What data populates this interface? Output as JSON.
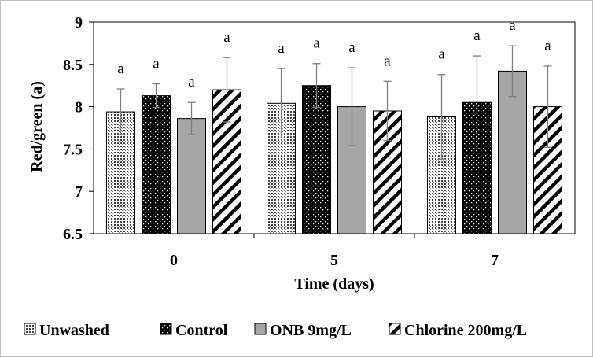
{
  "chart_data": {
    "type": "bar",
    "xlabel": "Time (days)",
    "ylabel": "Red/green (a)",
    "ylim": [
      6.5,
      9
    ],
    "yticks": [
      "6.5",
      "7",
      "7.5",
      "8",
      "8.5",
      "9"
    ],
    "categories": [
      "0",
      "5",
      "7"
    ],
    "series": [
      {
        "name": "Unwashed",
        "pattern": "dense-dots",
        "values": [
          7.94,
          8.04,
          7.88
        ],
        "errors": [
          0.27,
          0.41,
          0.5
        ],
        "labels": [
          "a",
          "a",
          "a"
        ]
      },
      {
        "name": "Control",
        "pattern": "black-dots",
        "values": [
          8.13,
          8.25,
          8.05
        ],
        "errors": [
          0.14,
          0.26,
          0.55
        ],
        "labels": [
          "a",
          "a",
          "a"
        ]
      },
      {
        "name": "ONB 9mg/L",
        "pattern": "gray",
        "values": [
          7.86,
          8.0,
          8.42
        ],
        "errors": [
          0.19,
          0.46,
          0.3
        ],
        "labels": [
          "a",
          "a",
          "a"
        ]
      },
      {
        "name": "Chlorine 200mg/L",
        "pattern": "diagonal",
        "values": [
          8.2,
          7.95,
          8.0
        ],
        "errors": [
          0.38,
          0.35,
          0.48
        ],
        "labels": [
          "a",
          "a",
          "a"
        ]
      }
    ],
    "grid": false,
    "legend_position": "bottom",
    "colors": {
      "gray_fill": "#a6a6a6",
      "error_bar": "#7f7f7f",
      "plot_border": "#000000"
    }
  }
}
